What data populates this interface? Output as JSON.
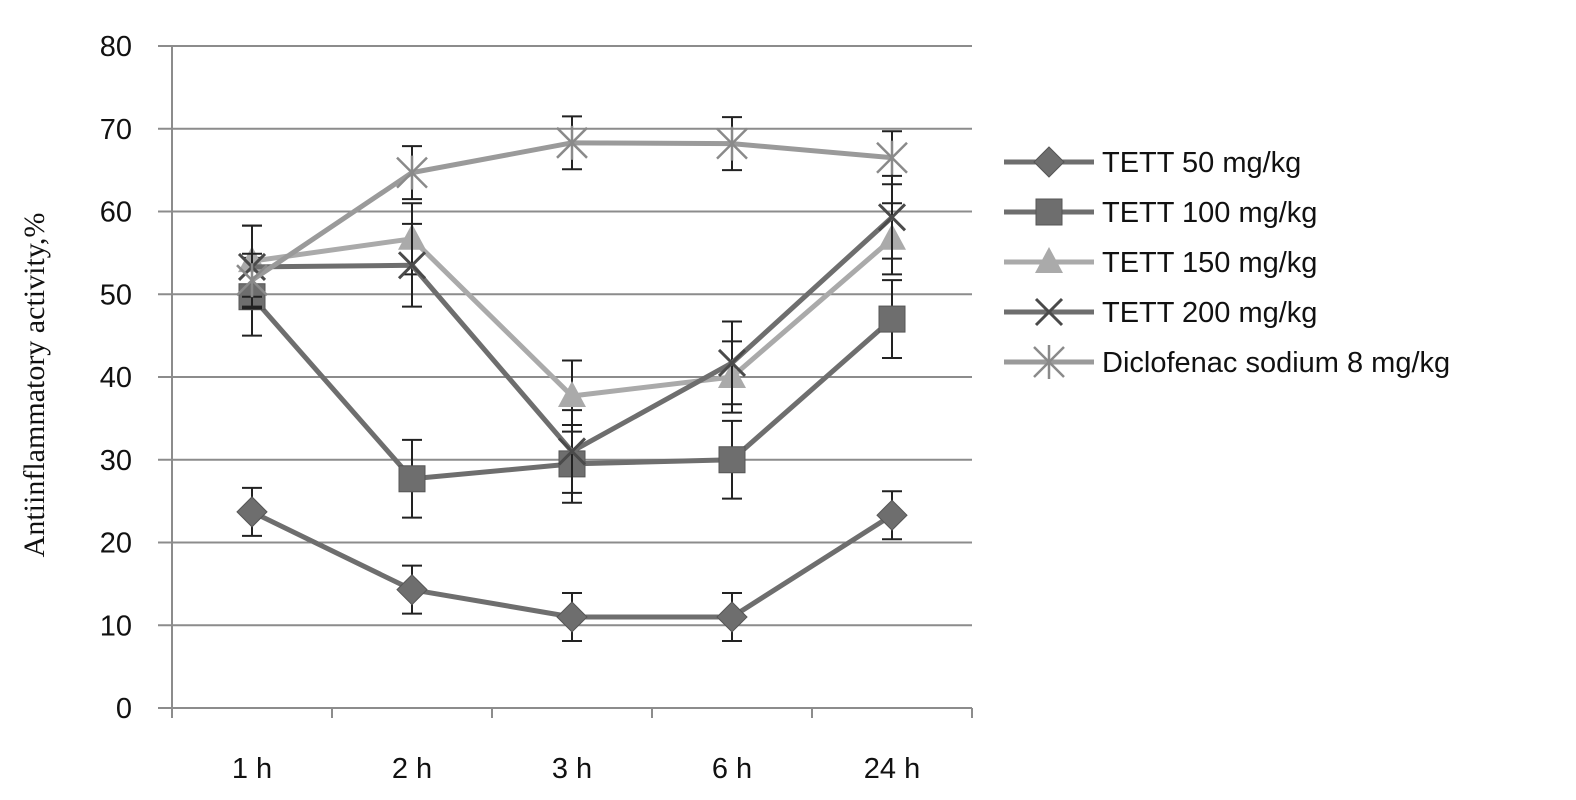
{
  "chart_data": {
    "type": "line",
    "title": "",
    "xlabel": "",
    "ylabel": "Antiinflammatory activity,%",
    "categories": [
      "1 h",
      "2 h",
      "3 h",
      "6 h",
      "24 h"
    ],
    "ylim": [
      0,
      80
    ],
    "yticks": [
      0,
      10,
      20,
      30,
      40,
      50,
      60,
      70,
      80
    ],
    "grid": true,
    "legend_position": "right",
    "error_bars": true,
    "series": [
      {
        "name": "TETT 50 mg/kg",
        "marker": "diamond",
        "color": "#6e6e6e",
        "values": [
          23.7,
          14.3,
          11.0,
          11.0,
          23.3
        ],
        "errors": [
          2.9,
          2.9,
          2.9,
          2.9,
          2.9
        ]
      },
      {
        "name": "TETT 100 mg/kg",
        "marker": "square",
        "color": "#6e6e6e",
        "values": [
          49.7,
          27.7,
          29.5,
          30.0,
          47.0
        ],
        "errors": [
          4.7,
          4.7,
          4.7,
          4.7,
          4.7
        ]
      },
      {
        "name": "TETT 150 mg/kg",
        "marker": "triangle",
        "color": "#aaaaaa",
        "values": [
          54.0,
          56.7,
          37.7,
          40.0,
          56.7
        ],
        "errors": [
          4.3,
          4.3,
          4.3,
          4.3,
          4.3
        ]
      },
      {
        "name": "TETT 200 mg/kg",
        "marker": "x",
        "color": "#6e6e6e",
        "values": [
          53.3,
          53.5,
          31.0,
          41.7,
          59.3
        ],
        "errors": [
          5.0,
          5.0,
          5.0,
          5.0,
          5.0
        ]
      },
      {
        "name": "Diclofenac sodium 8 mg/kg",
        "marker": "asterisk",
        "color": "#9a9a9a",
        "values": [
          51.7,
          64.7,
          68.3,
          68.2,
          66.5
        ],
        "errors": [
          3.2,
          3.2,
          3.2,
          3.2,
          3.2
        ]
      }
    ]
  }
}
